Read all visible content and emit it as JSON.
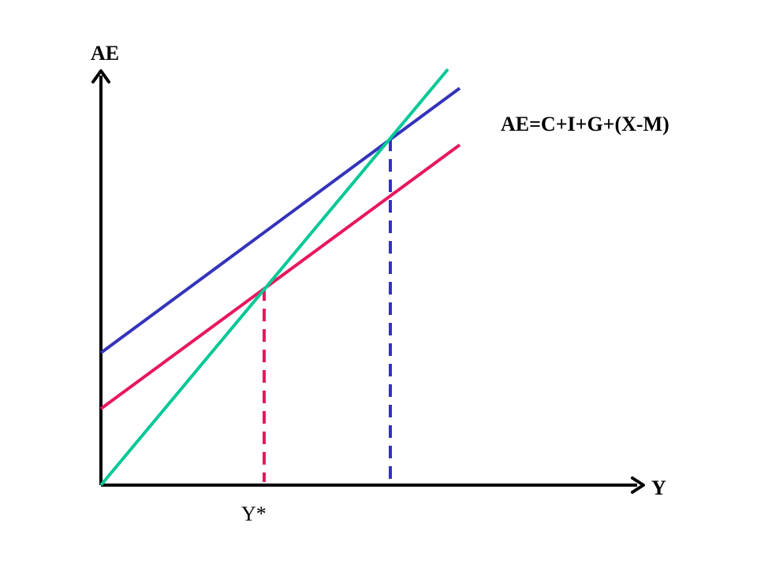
{
  "diagram": {
    "y_axis_label": "AE",
    "x_axis_label": "Y",
    "equation_label": "AE=C+I+G+(X-M)",
    "equilibrium_label": "Y*",
    "colors": {
      "axes": "#000000",
      "line_45": "#00c896",
      "ae_high": "#3333bb",
      "ae_low": "#e8175d",
      "drop_low": "#e8175d",
      "drop_high": "#3333bb"
    }
  }
}
